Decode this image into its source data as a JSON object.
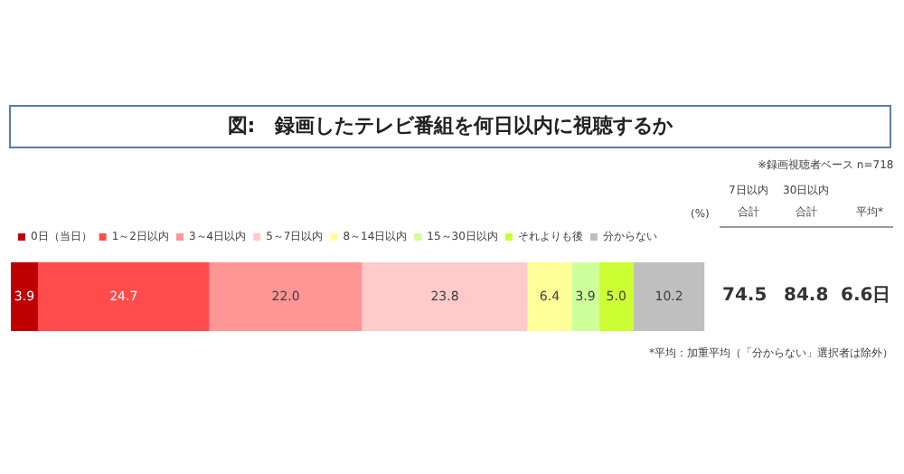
{
  "chart_data": {
    "type": "bar",
    "title": "図:　録画したテレビ番組を何日以内に視聴するか",
    "orientation": "horizontal",
    "stacked": true,
    "categories": [
      null
    ],
    "series": [
      {
        "name": "0日（当日）",
        "color": "#c00000",
        "values": [
          3.9
        ],
        "value_labels": [
          "3.9"
        ]
      },
      {
        "name": "1～2日以内",
        "color": "#ff4b4b",
        "values": [
          24.7
        ],
        "value_labels": [
          "24.7"
        ]
      },
      {
        "name": "3～4日以内",
        "color": "#ff9696",
        "values": [
          22.0
        ],
        "value_labels": [
          "22.0"
        ]
      },
      {
        "name": "5～7日以内",
        "color": "#ffcaca",
        "values": [
          23.8
        ],
        "value_labels": [
          "23.8"
        ]
      },
      {
        "name": "8～14日以内",
        "color": "#ffff99",
        "values": [
          6.4
        ],
        "value_labels": [
          "6.4"
        ]
      },
      {
        "name": "15～30日以内",
        "color": "#ccff99",
        "values": [
          3.9
        ],
        "value_labels": [
          "3.9"
        ]
      },
      {
        "name": "それよりも後",
        "color": "#ccff33",
        "values": [
          5.0
        ],
        "value_labels": [
          "5.0"
        ]
      },
      {
        "name": "分からない",
        "color": "#bfbfbf",
        "values": [
          10.2
        ],
        "value_labels": [
          "10.2"
        ]
      }
    ],
    "xlim": [
      0,
      100
    ],
    "legend": "top left",
    "grid": false,
    "tick_labels": false,
    "annotations": [
      "※録画視聴者ベース n=718",
      "(%)",
      "7日以内",
      "合計",
      "74.5",
      "30日以内",
      "合計",
      "84.8",
      "平均*",
      "6.6日",
      "*平均：加重平均（「分からない」選択者は除外）"
    ]
  }
}
